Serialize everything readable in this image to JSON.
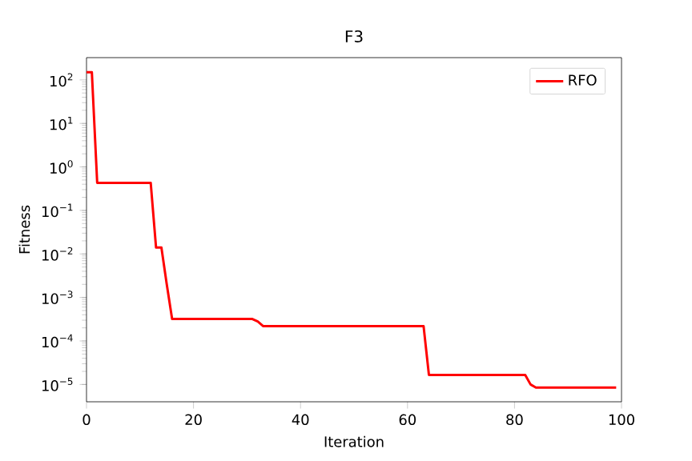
{
  "chart_data": {
    "type": "line",
    "title": "F3",
    "xlabel": "Iteration",
    "ylabel": "Fitness",
    "log": "y",
    "xlim": [
      0,
      100
    ],
    "xticks": [
      0,
      20,
      40,
      60,
      80,
      100
    ],
    "ylim": [
      4e-06,
      325
    ],
    "yticks": [
      {
        "value": 1e-05,
        "label": "10$^{−5}$"
      },
      {
        "value": 0.0001,
        "label": "10$^{−4}$"
      },
      {
        "value": 0.001,
        "label": "10$^{−3}$"
      },
      {
        "value": 0.01,
        "label": "10$^{−2}$"
      },
      {
        "value": 0.1,
        "label": "10$^{−1}$"
      },
      {
        "value": 1,
        "label": "10$^{0}$"
      },
      {
        "value": 10,
        "label": "10$^{1}$"
      },
      {
        "value": 100,
        "label": "10$^{2}$"
      }
    ],
    "legend": "top right",
    "grid": false,
    "series": [
      {
        "name": "RFO",
        "color": "#ff0000",
        "x": [
          0,
          1,
          2,
          12,
          13,
          14,
          15,
          16,
          31,
          32,
          33,
          63,
          64,
          82,
          83,
          84,
          99
        ],
        "values": [
          150,
          150,
          0.43,
          0.43,
          0.014,
          0.014,
          0.002,
          0.00032,
          0.00032,
          0.00028,
          0.00022,
          0.00022,
          1.66e-05,
          1.66e-05,
          1e-05,
          8.5e-06,
          8.5e-06
        ]
      }
    ]
  }
}
